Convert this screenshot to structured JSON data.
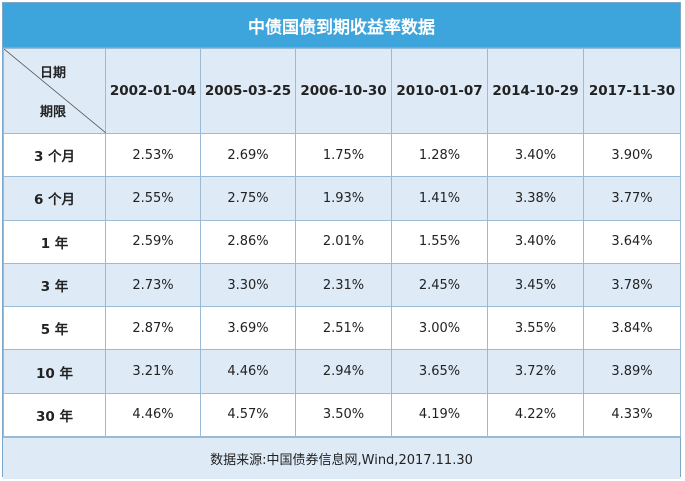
{
  "title": "中债国债到期收益率数据",
  "corner": {
    "top": "日期",
    "bottom": "期限"
  },
  "columns": [
    "2002-01-04",
    "2005-03-25",
    "2006-10-30",
    "2010-01-07",
    "2014-10-29",
    "2017-11-30"
  ],
  "rows": [
    {
      "label": "3 个月",
      "values": [
        "2.53%",
        "2.69%",
        "1.75%",
        "1.28%",
        "3.40%",
        "3.90%"
      ]
    },
    {
      "label": "6 个月",
      "values": [
        "2.55%",
        "2.75%",
        "1.93%",
        "1.41%",
        "3.38%",
        "3.77%"
      ]
    },
    {
      "label": "1 年",
      "values": [
        "2.59%",
        "2.86%",
        "2.01%",
        "1.55%",
        "3.40%",
        "3.64%"
      ]
    },
    {
      "label": "3 年",
      "values": [
        "2.73%",
        "3.30%",
        "2.31%",
        "2.45%",
        "3.45%",
        "3.78%"
      ]
    },
    {
      "label": "5 年",
      "values": [
        "2.87%",
        "3.69%",
        "2.51%",
        "3.00%",
        "3.55%",
        "3.84%"
      ]
    },
    {
      "label": "10 年",
      "values": [
        "3.21%",
        "4.46%",
        "2.94%",
        "3.65%",
        "3.72%",
        "3.89%"
      ]
    },
    {
      "label": "30 年",
      "values": [
        "4.46%",
        "4.57%",
        "3.50%",
        "4.19%",
        "4.22%",
        "4.33%"
      ]
    }
  ],
  "footer": "数据来源:中国债券信息网,Wind,2017.11.30",
  "colors": {
    "header_bg": "#3ea4dc",
    "band_bg": "#deeaf6",
    "border": "#9bbad6"
  }
}
